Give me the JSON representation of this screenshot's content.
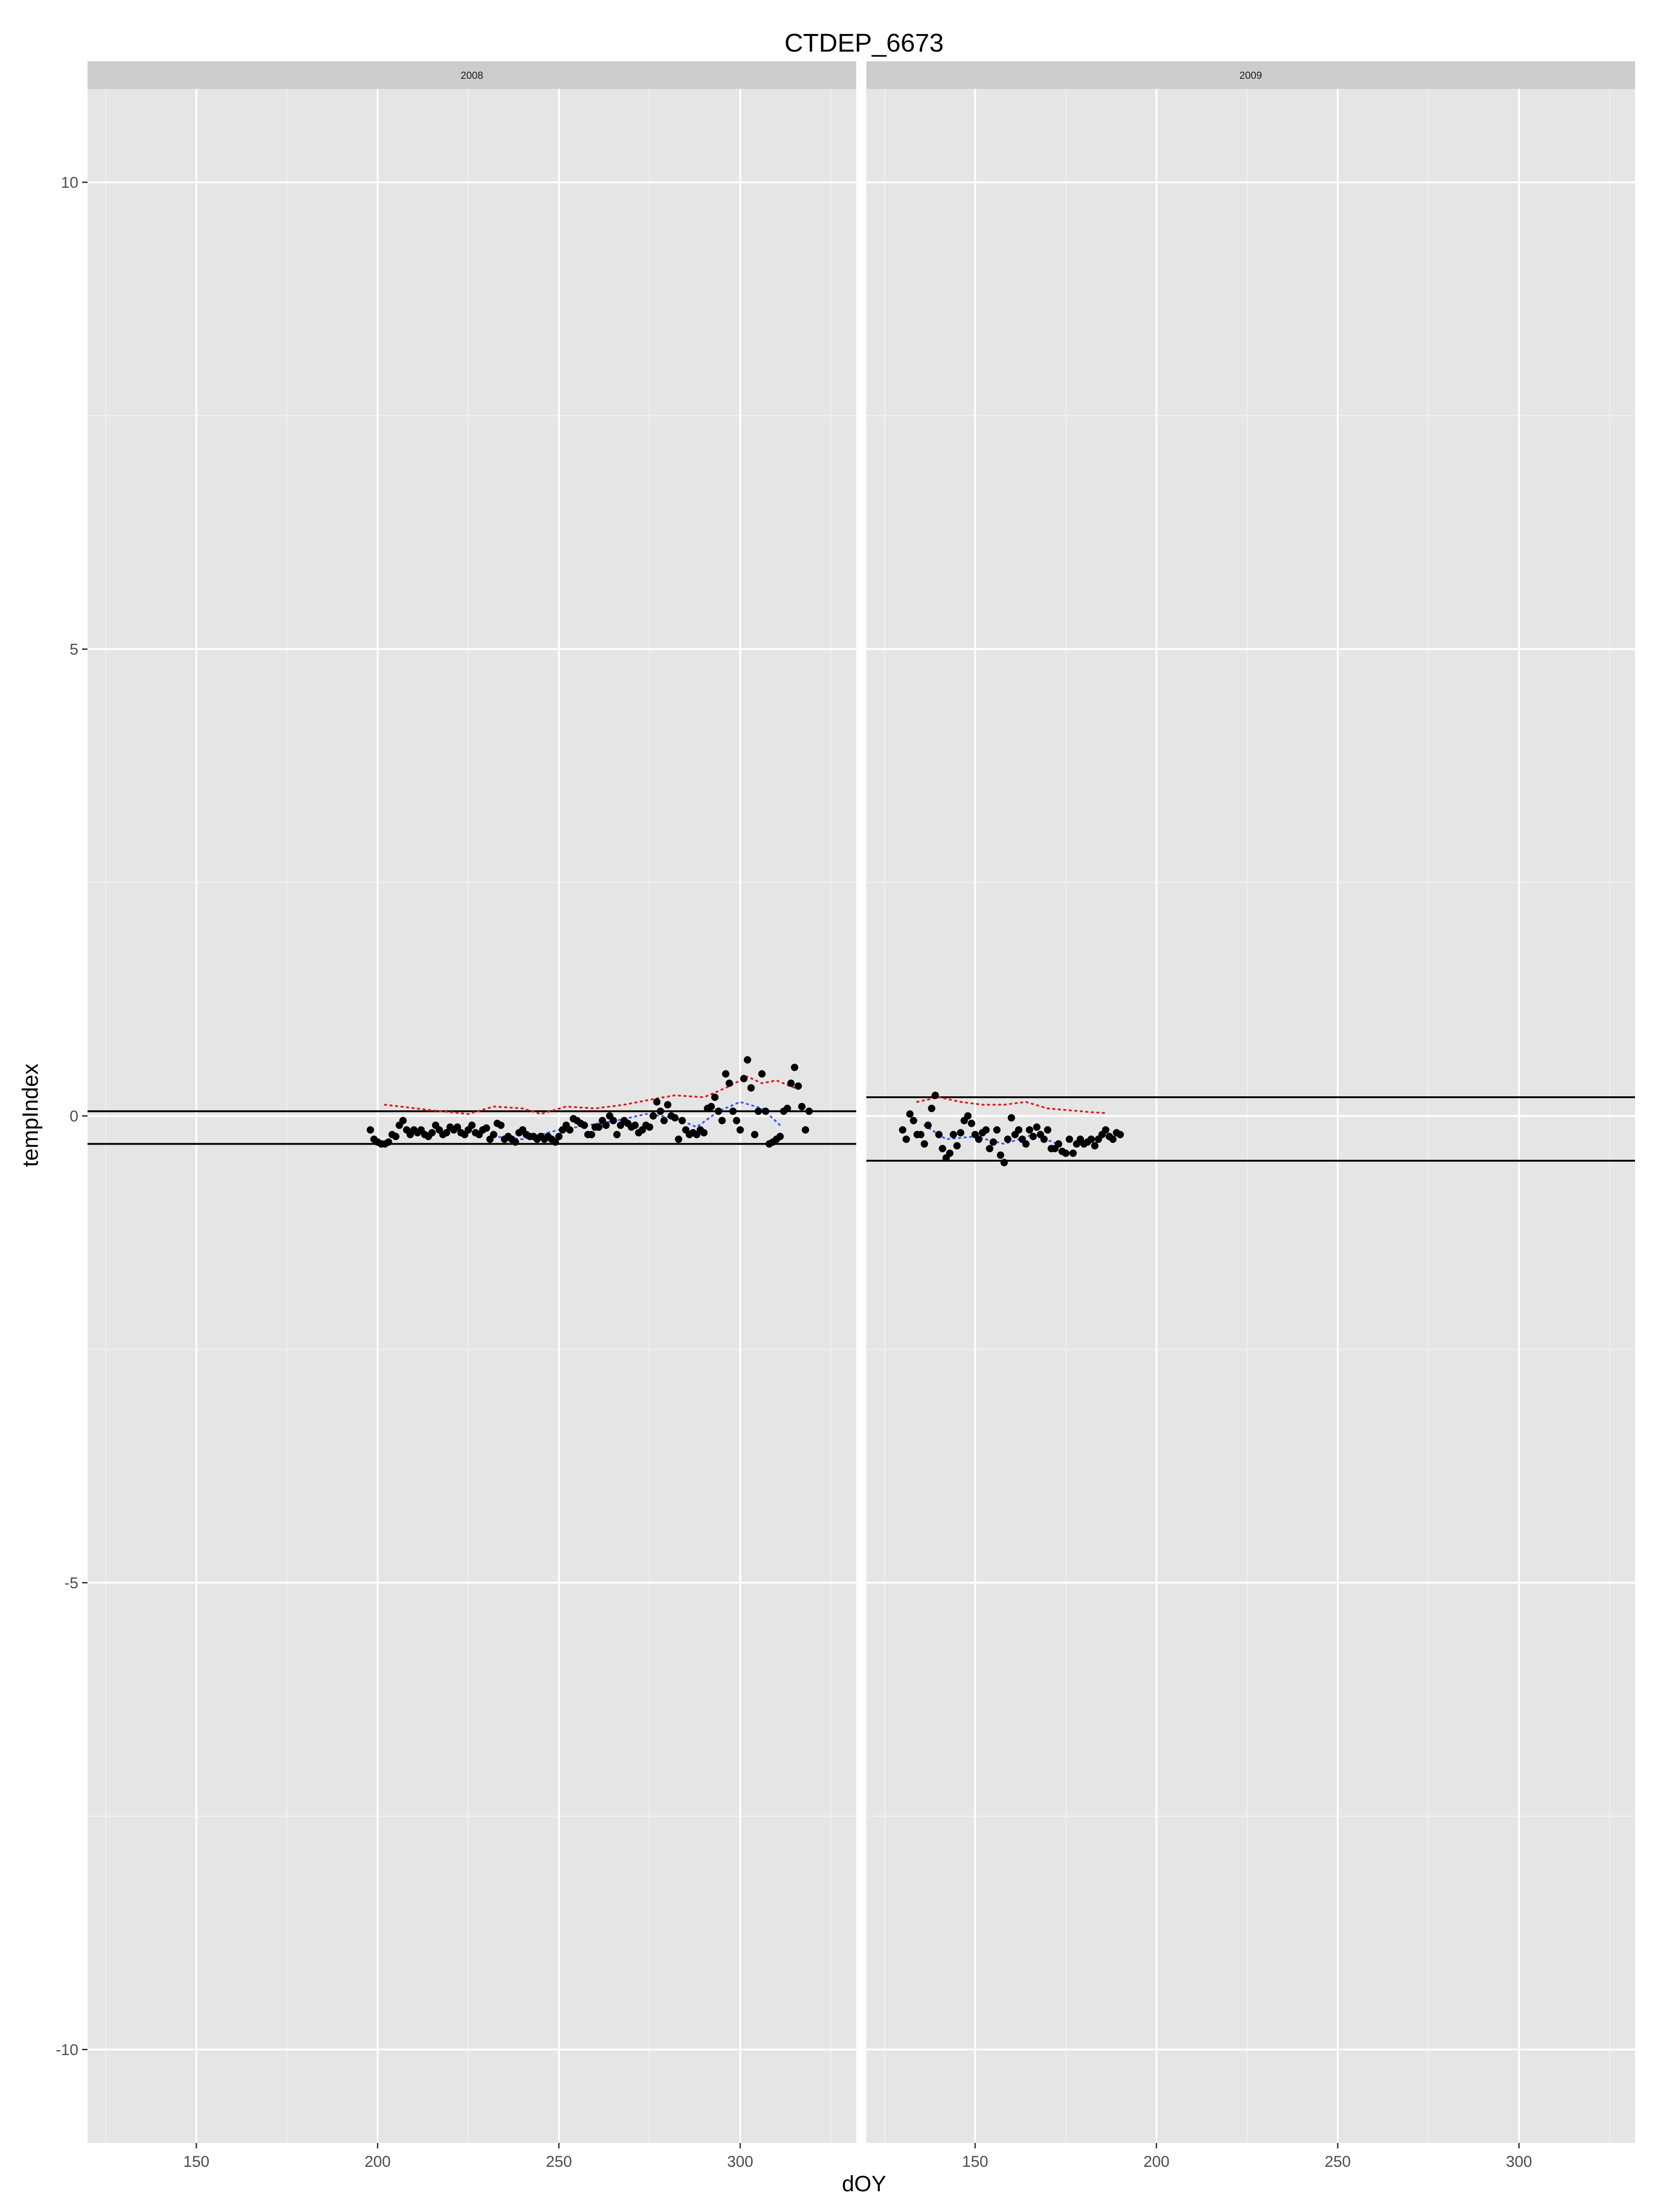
{
  "chart_data": {
    "type": "scatter",
    "title": "CTDEP_6673",
    "xlabel": "dOY",
    "ylabel": "tempIndex",
    "xlim": [
      120,
      332
    ],
    "ylim": [
      -11,
      11
    ],
    "x_ticks": [
      150,
      200,
      250,
      300
    ],
    "y_ticks": [
      -10,
      -5,
      0,
      5,
      10
    ],
    "grid": true,
    "colors": {
      "panel_bg": "#e5e5e5",
      "strip_bg": "#cccccc",
      "grid_major": "#ffffff",
      "grid_minor": "#f2f2f2",
      "points": "#000000",
      "red_dotted": "#e41a1c",
      "blue_dotted": "#3b5bff",
      "hline": "#000000"
    },
    "panels": [
      {
        "label": "2008",
        "hlines": [
          0.05,
          -0.3
        ],
        "points": [
          {
            "x": 198,
            "y": -0.15
          },
          {
            "x": 199,
            "y": -0.25
          },
          {
            "x": 200,
            "y": -0.28
          },
          {
            "x": 201,
            "y": -0.3
          },
          {
            "x": 202,
            "y": -0.3
          },
          {
            "x": 203,
            "y": -0.28
          },
          {
            "x": 204,
            "y": -0.2
          },
          {
            "x": 205,
            "y": -0.22
          },
          {
            "x": 206,
            "y": -0.1
          },
          {
            "x": 207,
            "y": -0.05
          },
          {
            "x": 208,
            "y": -0.15
          },
          {
            "x": 209,
            "y": -0.2
          },
          {
            "x": 210,
            "y": -0.15
          },
          {
            "x": 211,
            "y": -0.18
          },
          {
            "x": 212,
            "y": -0.15
          },
          {
            "x": 213,
            "y": -0.2
          },
          {
            "x": 214,
            "y": -0.22
          },
          {
            "x": 215,
            "y": -0.18
          },
          {
            "x": 216,
            "y": -0.1
          },
          {
            "x": 217,
            "y": -0.15
          },
          {
            "x": 218,
            "y": -0.2
          },
          {
            "x": 219,
            "y": -0.18
          },
          {
            "x": 220,
            "y": -0.12
          },
          {
            "x": 221,
            "y": -0.15
          },
          {
            "x": 222,
            "y": -0.12
          },
          {
            "x": 223,
            "y": -0.18
          },
          {
            "x": 224,
            "y": -0.2
          },
          {
            "x": 225,
            "y": -0.15
          },
          {
            "x": 226,
            "y": -0.1
          },
          {
            "x": 227,
            "y": -0.18
          },
          {
            "x": 228,
            "y": -0.2
          },
          {
            "x": 229,
            "y": -0.15
          },
          {
            "x": 230,
            "y": -0.13
          },
          {
            "x": 231,
            "y": -0.25
          },
          {
            "x": 232,
            "y": -0.2
          },
          {
            "x": 233,
            "y": -0.08
          },
          {
            "x": 234,
            "y": -0.1
          },
          {
            "x": 235,
            "y": -0.25
          },
          {
            "x": 236,
            "y": -0.22
          },
          {
            "x": 237,
            "y": -0.25
          },
          {
            "x": 238,
            "y": -0.28
          },
          {
            "x": 239,
            "y": -0.18
          },
          {
            "x": 240,
            "y": -0.15
          },
          {
            "x": 241,
            "y": -0.2
          },
          {
            "x": 242,
            "y": -0.22
          },
          {
            "x": 243,
            "y": -0.22
          },
          {
            "x": 244,
            "y": -0.25
          },
          {
            "x": 245,
            "y": -0.22
          },
          {
            "x": 246,
            "y": -0.25
          },
          {
            "x": 247,
            "y": -0.22
          },
          {
            "x": 248,
            "y": -0.25
          },
          {
            "x": 249,
            "y": -0.28
          },
          {
            "x": 250,
            "y": -0.22
          },
          {
            "x": 251,
            "y": -0.15
          },
          {
            "x": 252,
            "y": -0.1
          },
          {
            "x": 253,
            "y": -0.15
          },
          {
            "x": 254,
            "y": -0.03
          },
          {
            "x": 255,
            "y": -0.05
          },
          {
            "x": 256,
            "y": -0.08
          },
          {
            "x": 257,
            "y": -0.1
          },
          {
            "x": 258,
            "y": -0.2
          },
          {
            "x": 259,
            "y": -0.2
          },
          {
            "x": 260,
            "y": -0.12
          },
          {
            "x": 261,
            "y": -0.12
          },
          {
            "x": 262,
            "y": -0.05
          },
          {
            "x": 263,
            "y": -0.1
          },
          {
            "x": 264,
            "y": 0.0
          },
          {
            "x": 265,
            "y": -0.05
          },
          {
            "x": 266,
            "y": -0.2
          },
          {
            "x": 267,
            "y": -0.1
          },
          {
            "x": 268,
            "y": -0.05
          },
          {
            "x": 269,
            "y": -0.08
          },
          {
            "x": 270,
            "y": -0.12
          },
          {
            "x": 271,
            "y": -0.1
          },
          {
            "x": 272,
            "y": -0.18
          },
          {
            "x": 273,
            "y": -0.15
          },
          {
            "x": 274,
            "y": -0.1
          },
          {
            "x": 275,
            "y": -0.12
          },
          {
            "x": 276,
            "y": 0.0
          },
          {
            "x": 277,
            "y": 0.15
          },
          {
            "x": 278,
            "y": 0.05
          },
          {
            "x": 279,
            "y": -0.05
          },
          {
            "x": 280,
            "y": 0.12
          },
          {
            "x": 281,
            "y": 0.0
          },
          {
            "x": 282,
            "y": -0.02
          },
          {
            "x": 283,
            "y": -0.25
          },
          {
            "x": 284,
            "y": -0.05
          },
          {
            "x": 285,
            "y": -0.15
          },
          {
            "x": 286,
            "y": -0.2
          },
          {
            "x": 287,
            "y": -0.18
          },
          {
            "x": 288,
            "y": -0.2
          },
          {
            "x": 289,
            "y": -0.15
          },
          {
            "x": 290,
            "y": -0.18
          },
          {
            "x": 291,
            "y": 0.08
          },
          {
            "x": 292,
            "y": 0.1
          },
          {
            "x": 293,
            "y": 0.2
          },
          {
            "x": 294,
            "y": 0.05
          },
          {
            "x": 295,
            "y": -0.05
          },
          {
            "x": 296,
            "y": 0.45
          },
          {
            "x": 297,
            "y": 0.35
          },
          {
            "x": 298,
            "y": 0.05
          },
          {
            "x": 299,
            "y": -0.05
          },
          {
            "x": 300,
            "y": -0.15
          },
          {
            "x": 301,
            "y": 0.4
          },
          {
            "x": 302,
            "y": 0.6
          },
          {
            "x": 303,
            "y": 0.3
          },
          {
            "x": 304,
            "y": -0.2
          },
          {
            "x": 305,
            "y": 0.05
          },
          {
            "x": 306,
            "y": 0.45
          },
          {
            "x": 307,
            "y": 0.05
          },
          {
            "x": 308,
            "y": -0.3
          },
          {
            "x": 309,
            "y": -0.28
          },
          {
            "x": 310,
            "y": -0.25
          },
          {
            "x": 311,
            "y": -0.22
          },
          {
            "x": 312,
            "y": 0.05
          },
          {
            "x": 313,
            "y": 0.08
          },
          {
            "x": 314,
            "y": 0.35
          },
          {
            "x": 315,
            "y": 0.52
          },
          {
            "x": 316,
            "y": 0.32
          },
          {
            "x": 317,
            "y": 0.1
          },
          {
            "x": 318,
            "y": -0.15
          },
          {
            "x": 319,
            "y": 0.05
          }
        ],
        "red_line": [
          {
            "x": 202,
            "y": 0.12
          },
          {
            "x": 215,
            "y": 0.06
          },
          {
            "x": 225,
            "y": 0.02
          },
          {
            "x": 232,
            "y": 0.1
          },
          {
            "x": 240,
            "y": 0.08
          },
          {
            "x": 245,
            "y": 0.02
          },
          {
            "x": 252,
            "y": 0.1
          },
          {
            "x": 260,
            "y": 0.08
          },
          {
            "x": 268,
            "y": 0.12
          },
          {
            "x": 276,
            "y": 0.18
          },
          {
            "x": 282,
            "y": 0.22
          },
          {
            "x": 290,
            "y": 0.2
          },
          {
            "x": 296,
            "y": 0.3
          },
          {
            "x": 302,
            "y": 0.42
          },
          {
            "x": 306,
            "y": 0.35
          },
          {
            "x": 310,
            "y": 0.38
          },
          {
            "x": 315,
            "y": 0.3
          }
        ],
        "blue_line": [
          {
            "x": 232,
            "y": -0.22
          },
          {
            "x": 240,
            "y": -0.25
          },
          {
            "x": 250,
            "y": -0.15
          },
          {
            "x": 258,
            "y": -0.1
          },
          {
            "x": 266,
            "y": -0.05
          },
          {
            "x": 274,
            "y": 0.02
          },
          {
            "x": 282,
            "y": -0.02
          },
          {
            "x": 288,
            "y": -0.12
          },
          {
            "x": 294,
            "y": 0.05
          },
          {
            "x": 300,
            "y": 0.15
          },
          {
            "x": 306,
            "y": 0.08
          },
          {
            "x": 311,
            "y": -0.1
          }
        ]
      },
      {
        "label": "2009",
        "hlines": [
          0.2,
          -0.48
        ],
        "points": [
          {
            "x": 130,
            "y": -0.15
          },
          {
            "x": 131,
            "y": -0.25
          },
          {
            "x": 132,
            "y": 0.02
          },
          {
            "x": 133,
            "y": -0.05
          },
          {
            "x": 134,
            "y": -0.2
          },
          {
            "x": 135,
            "y": -0.2
          },
          {
            "x": 136,
            "y": -0.3
          },
          {
            "x": 137,
            "y": -0.1
          },
          {
            "x": 138,
            "y": 0.08
          },
          {
            "x": 139,
            "y": 0.22
          },
          {
            "x": 140,
            "y": -0.2
          },
          {
            "x": 141,
            "y": -0.35
          },
          {
            "x": 142,
            "y": -0.45
          },
          {
            "x": 143,
            "y": -0.4
          },
          {
            "x": 144,
            "y": -0.2
          },
          {
            "x": 145,
            "y": -0.32
          },
          {
            "x": 146,
            "y": -0.18
          },
          {
            "x": 147,
            "y": -0.05
          },
          {
            "x": 148,
            "y": 0.0
          },
          {
            "x": 149,
            "y": -0.08
          },
          {
            "x": 150,
            "y": -0.2
          },
          {
            "x": 151,
            "y": -0.25
          },
          {
            "x": 152,
            "y": -0.18
          },
          {
            "x": 153,
            "y": -0.15
          },
          {
            "x": 154,
            "y": -0.35
          },
          {
            "x": 155,
            "y": -0.28
          },
          {
            "x": 156,
            "y": -0.15
          },
          {
            "x": 157,
            "y": -0.42
          },
          {
            "x": 158,
            "y": -0.5
          },
          {
            "x": 159,
            "y": -0.25
          },
          {
            "x": 160,
            "y": -0.02
          },
          {
            "x": 161,
            "y": -0.2
          },
          {
            "x": 162,
            "y": -0.15
          },
          {
            "x": 163,
            "y": -0.25
          },
          {
            "x": 164,
            "y": -0.3
          },
          {
            "x": 165,
            "y": -0.15
          },
          {
            "x": 166,
            "y": -0.22
          },
          {
            "x": 167,
            "y": -0.12
          },
          {
            "x": 168,
            "y": -0.2
          },
          {
            "x": 169,
            "y": -0.25
          },
          {
            "x": 170,
            "y": -0.15
          },
          {
            "x": 171,
            "y": -0.35
          },
          {
            "x": 172,
            "y": -0.35
          },
          {
            "x": 173,
            "y": -0.3
          },
          {
            "x": 174,
            "y": -0.38
          },
          {
            "x": 175,
            "y": -0.4
          },
          {
            "x": 176,
            "y": -0.25
          },
          {
            "x": 177,
            "y": -0.4
          },
          {
            "x": 178,
            "y": -0.3
          },
          {
            "x": 179,
            "y": -0.25
          },
          {
            "x": 180,
            "y": -0.3
          },
          {
            "x": 181,
            "y": -0.28
          },
          {
            "x": 182,
            "y": -0.25
          },
          {
            "x": 183,
            "y": -0.32
          },
          {
            "x": 184,
            "y": -0.25
          },
          {
            "x": 185,
            "y": -0.2
          },
          {
            "x": 186,
            "y": -0.15
          },
          {
            "x": 187,
            "y": -0.22
          },
          {
            "x": 188,
            "y": -0.25
          },
          {
            "x": 189,
            "y": -0.18
          },
          {
            "x": 190,
            "y": -0.2
          }
        ],
        "red_line": [
          {
            "x": 134,
            "y": 0.15
          },
          {
            "x": 140,
            "y": 0.2
          },
          {
            "x": 146,
            "y": 0.15
          },
          {
            "x": 152,
            "y": 0.12
          },
          {
            "x": 158,
            "y": 0.12
          },
          {
            "x": 164,
            "y": 0.15
          },
          {
            "x": 170,
            "y": 0.08
          },
          {
            "x": 176,
            "y": 0.06
          },
          {
            "x": 182,
            "y": 0.04
          },
          {
            "x": 186,
            "y": 0.03
          }
        ],
        "blue_line": [
          {
            "x": 136,
            "y": -0.1
          },
          {
            "x": 142,
            "y": -0.25
          },
          {
            "x": 150,
            "y": -0.22
          },
          {
            "x": 158,
            "y": -0.3
          },
          {
            "x": 166,
            "y": -0.2
          },
          {
            "x": 174,
            "y": -0.32
          }
        ]
      }
    ]
  }
}
